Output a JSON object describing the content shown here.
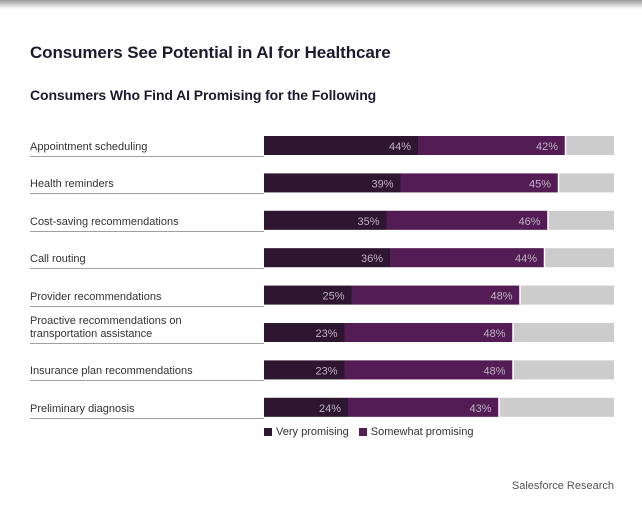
{
  "title": "Consumers See Potential in AI for Healthcare",
  "subtitle": "Consumers Who Find AI Promising for the Following",
  "source": "Salesforce Research",
  "colors": {
    "very": "#2e1530",
    "somewhat": "#531c55",
    "remainder": "#cccccc",
    "label_text": "#bfb3c3"
  },
  "chart_data": {
    "type": "bar",
    "orientation": "horizontal",
    "stacked": true,
    "title": "Consumers Who Find AI Promising for the Following",
    "xlabel": "",
    "ylabel": "",
    "xlim": [
      0,
      100
    ],
    "unit": "%",
    "categories": [
      "Appointment scheduling",
      "Health reminders",
      "Cost-saving recommendations",
      "Call routing",
      "Provider recommendations",
      "Proactive recommendations on transportation assistance",
      "Insurance plan recommendations",
      "Preliminary diagnosis"
    ],
    "series": [
      {
        "name": "Very promising",
        "values": [
          44,
          39,
          35,
          36,
          25,
          23,
          23,
          24
        ]
      },
      {
        "name": "Somewhat promising",
        "values": [
          42,
          45,
          46,
          44,
          48,
          48,
          48,
          43
        ]
      }
    ],
    "legend_position": "bottom",
    "grid": false
  },
  "labels": {
    "row_lines": [
      [
        "Appointment scheduling"
      ],
      [
        "Health reminders"
      ],
      [
        "Cost-saving recommendations"
      ],
      [
        "Call routing"
      ],
      [
        "Provider recommendations"
      ],
      [
        "Proactive recommendations on",
        "transportation assistance"
      ],
      [
        "Insurance plan recommendations"
      ],
      [
        "Preliminary diagnosis"
      ]
    ]
  },
  "legend": [
    {
      "label": "Very promising"
    },
    {
      "label": "Somewhat promising"
    }
  ]
}
